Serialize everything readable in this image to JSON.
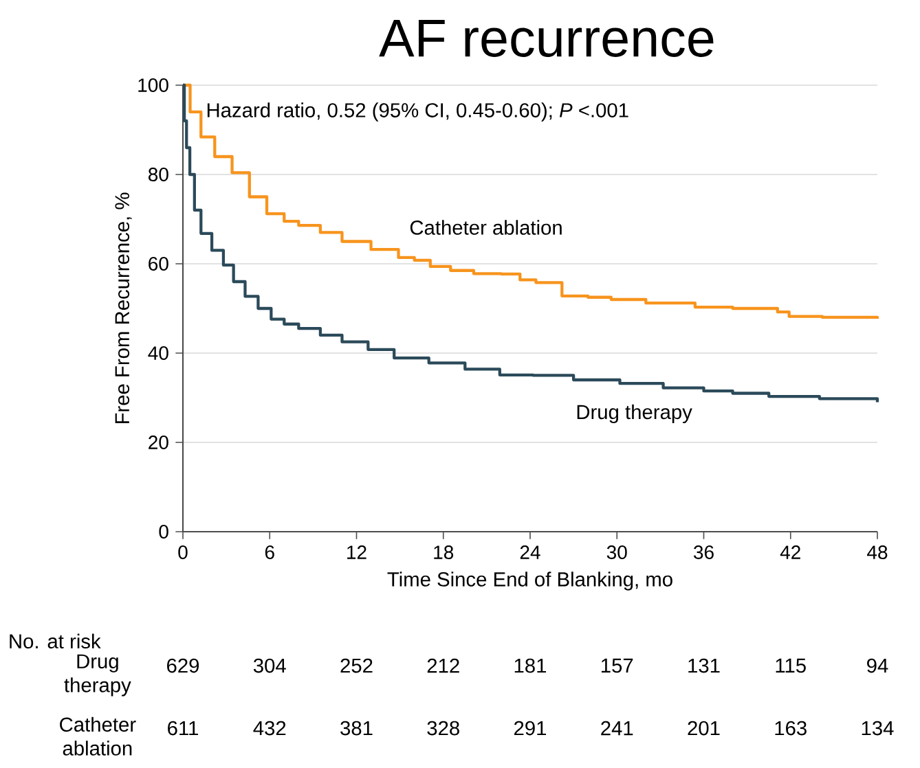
{
  "chart_data": {
    "type": "step",
    "title": "AF recurrence",
    "xlabel": "Time Since End of Blanking, mo",
    "ylabel": "Free From Recurrence, %",
    "xlim": [
      0,
      48
    ],
    "ylim": [
      0,
      100
    ],
    "xticks": [
      0,
      6,
      12,
      18,
      24,
      30,
      36,
      42,
      48
    ],
    "yticks": [
      0,
      20,
      40,
      60,
      80,
      100
    ],
    "grid": "y",
    "legend": false,
    "series": [
      {
        "name": "Catheter ablation",
        "color": "#f7941d",
        "x": [
          0,
          0.5,
          1.25,
          2.2,
          3.4,
          4.6,
          5.8,
          7,
          8,
          9.5,
          11,
          13,
          14.9,
          16,
          17.1,
          18.5,
          20.1,
          22,
          23.3,
          24.4,
          26.2,
          28,
          29.6,
          32,
          35.4,
          38,
          41.1,
          41.9,
          44.2,
          48
        ],
        "values": [
          100,
          94,
          88.4,
          84,
          80.4,
          75,
          71.2,
          69.5,
          68.6,
          67,
          65,
          63.2,
          61.4,
          60.8,
          59.4,
          58.5,
          57.8,
          57.7,
          56.4,
          55.8,
          52.8,
          52.5,
          52,
          51.2,
          50.3,
          50,
          49.2,
          48.2,
          48,
          47.7
        ]
      },
      {
        "name": "Drug therapy",
        "color": "#2b4a5a",
        "x": [
          0,
          0.1,
          0.25,
          0.48,
          0.8,
          1.25,
          2,
          2.8,
          3.5,
          4.3,
          5.2,
          6.1,
          7,
          8,
          9.5,
          11,
          12.8,
          14.6,
          17,
          19.5,
          21.9,
          24.2,
          27,
          30.2,
          33.2,
          36,
          38,
          40.5,
          44,
          48
        ],
        "values": [
          100,
          92,
          86,
          80,
          72,
          66.8,
          63,
          59.7,
          56,
          52.7,
          50,
          47.6,
          46.5,
          45.5,
          44,
          42.5,
          40.8,
          38.9,
          37.8,
          36.4,
          35.1,
          35,
          34,
          33.2,
          32.2,
          31.5,
          31,
          30.3,
          29.8,
          29
        ]
      }
    ],
    "annotations": [
      "Hazard ratio, 0.52 (95% CI, 0.45-0.60); *P* <.001",
      "No. at risk",
      "Drug therapy",
      "629",
      "304",
      "252",
      "212",
      "181",
      "157",
      "131",
      "115",
      "94",
      "Catheter ablation",
      "611",
      "432",
      "381",
      "328",
      "291",
      "241",
      "201",
      "163",
      "134"
    ]
  }
}
